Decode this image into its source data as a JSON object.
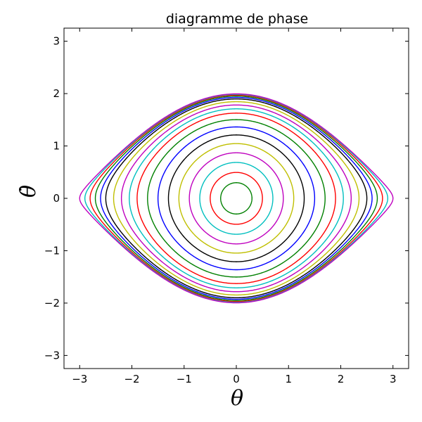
{
  "chart_data": {
    "type": "line",
    "title": "diagramme de phase",
    "xlabel": "θ",
    "ylabel": "θ̇",
    "xlim": [
      -3.3,
      3.3
    ],
    "ylim": [
      -3.25,
      3.25
    ],
    "xticks": [
      -3,
      -2,
      -1,
      0,
      1,
      2,
      3
    ],
    "yticks": [
      -3,
      -2,
      -1,
      0,
      1,
      2,
      3
    ],
    "xtick_labels": [
      "−3",
      "−2",
      "−1",
      "0",
      "1",
      "2",
      "3"
    ],
    "ytick_labels": [
      "−3",
      "−2",
      "−1",
      "0",
      "1",
      "2",
      "3"
    ],
    "grid": false,
    "legend": "none",
    "series": [
      {
        "theta_max": 0.3,
        "color": "#008000"
      },
      {
        "theta_max": 0.5,
        "color": "#ff0000"
      },
      {
        "theta_max": 0.7,
        "color": "#00bfbf"
      },
      {
        "theta_max": 0.9,
        "color": "#bf00bf"
      },
      {
        "theta_max": 1.1,
        "color": "#bfbf00"
      },
      {
        "theta_max": 1.3,
        "color": "#000000"
      },
      {
        "theta_max": 1.5,
        "color": "#0000ff"
      },
      {
        "theta_max": 1.7,
        "color": "#008000"
      },
      {
        "theta_max": 1.9,
        "color": "#ff0000"
      },
      {
        "theta_max": 2.05,
        "color": "#00bfbf"
      },
      {
        "theta_max": 2.2,
        "color": "#bf00bf"
      },
      {
        "theta_max": 2.35,
        "color": "#bfbf00"
      },
      {
        "theta_max": 2.5,
        "color": "#000000"
      },
      {
        "theta_max": 2.6,
        "color": "#0000ff"
      },
      {
        "theta_max": 2.7,
        "color": "#008000"
      },
      {
        "theta_max": 2.8,
        "color": "#ff0000"
      },
      {
        "theta_max": 2.9,
        "color": "#00bfbf"
      },
      {
        "theta_max": 3.0,
        "color": "#bf00bf"
      }
    ]
  }
}
